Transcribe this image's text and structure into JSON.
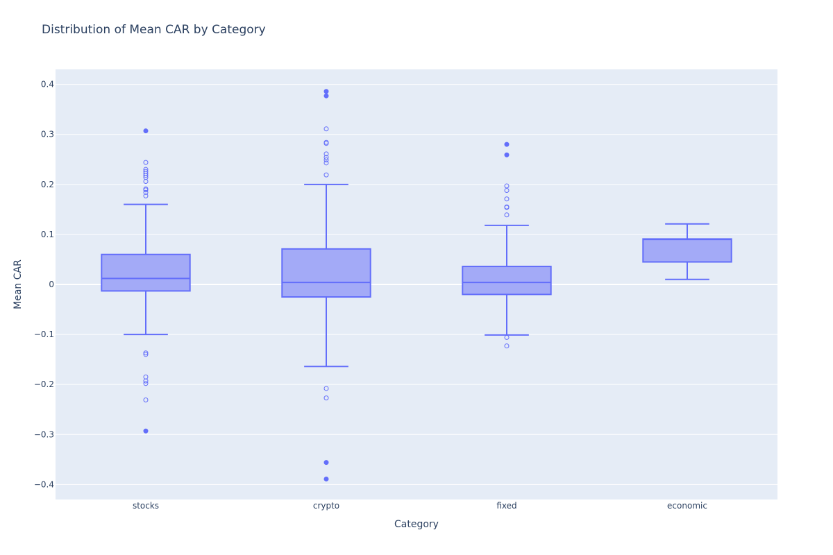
{
  "chart_data": {
    "type": "box",
    "title": "Distribution of Mean CAR by Category",
    "xlabel": "Category",
    "ylabel": "Mean CAR",
    "ylim": [
      -0.43,
      0.43
    ],
    "yticks": [
      0.4,
      0.3,
      0.2,
      0.1,
      0,
      -0.1,
      -0.2,
      -0.3,
      -0.4
    ],
    "ytick_labels": [
      "0.4",
      "0.3",
      "0.2",
      "0.1",
      "0",
      "−0.1",
      "−0.2",
      "−0.3",
      "−0.4"
    ],
    "grid": true,
    "colors": {
      "plot_bg": "#e5ecf6",
      "grid": "#ffffff",
      "box_line": "#636efa",
      "box_fill": "#a3aaf7",
      "text": "#2a3f5f"
    },
    "categories": [
      "stocks",
      "crypto",
      "fixed",
      "economic"
    ],
    "boxes": [
      {
        "category": "stocks",
        "lower_fence": -0.1,
        "q1": -0.013,
        "median": 0.012,
        "q3": 0.06,
        "upper_fence": 0.16,
        "suspected_outliers": [
          0.244,
          0.23,
          0.226,
          0.222,
          0.218,
          0.214,
          0.206,
          0.191,
          0.189,
          0.184,
          0.177,
          -0.137,
          -0.14,
          -0.185,
          -0.193,
          -0.198,
          -0.231
        ],
        "outliers": [
          0.307,
          -0.293
        ]
      },
      {
        "category": "crypto",
        "lower_fence": -0.164,
        "q1": -0.025,
        "median": 0.004,
        "q3": 0.071,
        "upper_fence": 0.2,
        "suspected_outliers": [
          0.311,
          0.284,
          0.282,
          0.261,
          0.254,
          0.249,
          0.243,
          0.219,
          -0.208,
          -0.227
        ],
        "outliers": [
          0.386,
          0.377,
          -0.356,
          -0.389
        ]
      },
      {
        "category": "fixed",
        "lower_fence": -0.101,
        "q1": -0.02,
        "median": 0.004,
        "q3": 0.036,
        "upper_fence": 0.118,
        "suspected_outliers": [
          0.197,
          0.188,
          0.171,
          0.155,
          0.154,
          0.139,
          -0.106,
          -0.123
        ],
        "outliers": [
          0.28,
          0.259
        ]
      },
      {
        "category": "economic",
        "lower_fence": 0.01,
        "q1": 0.045,
        "median": 0.09,
        "q3": 0.091,
        "upper_fence": 0.121,
        "suspected_outliers": [],
        "outliers": []
      }
    ]
  }
}
